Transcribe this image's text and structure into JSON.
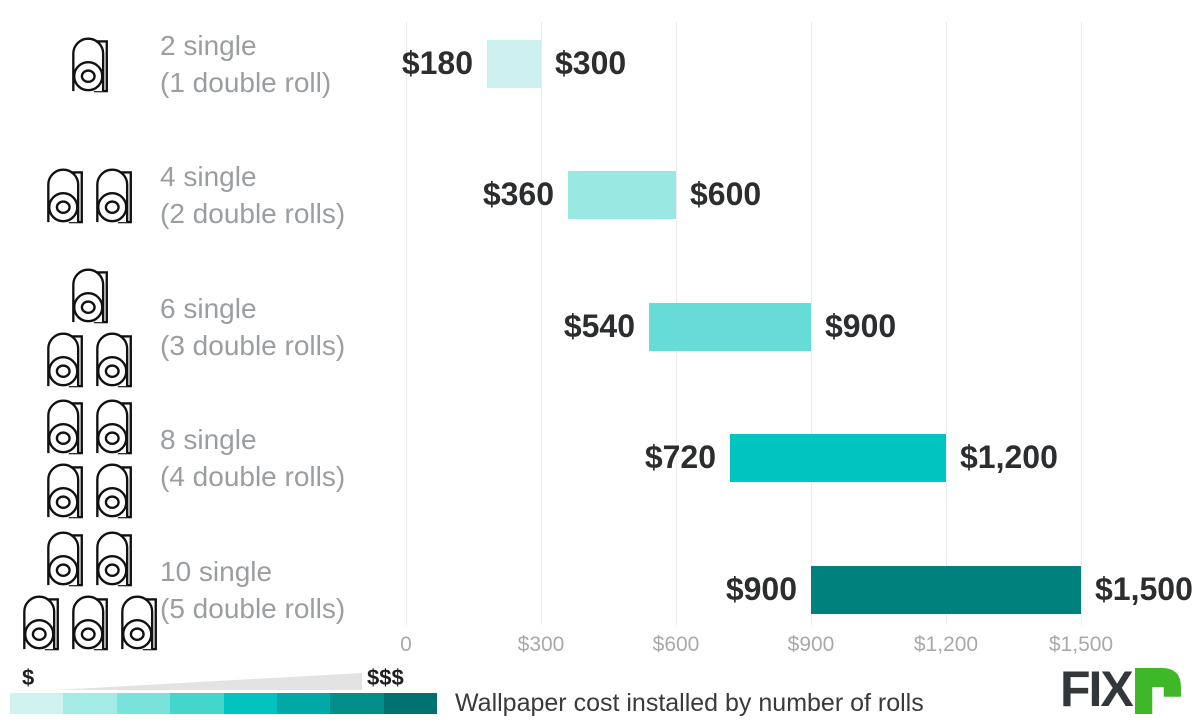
{
  "chart_data": {
    "type": "bar",
    "subtype": "horizontal-range-bars",
    "title": "Wallpaper cost installed by number of rolls",
    "x_axis": {
      "min": 0,
      "max": 1500,
      "grid": true,
      "ticks": [
        {
          "value": 0,
          "label": "0"
        },
        {
          "value": 300,
          "label": "$300"
        },
        {
          "value": 600,
          "label": "$600"
        },
        {
          "value": 900,
          "label": "$900"
        },
        {
          "value": 1200,
          "label": "$1,200"
        },
        {
          "value": 1500,
          "label": "$1,500"
        }
      ]
    },
    "rows": [
      {
        "category": "2 single (1 double roll)",
        "label_lines": [
          "2 single",
          "(1 double roll)"
        ],
        "min": 180,
        "max": 300,
        "min_label": "$180",
        "max_label": "$300",
        "color": "#cdf1f0",
        "icon_layout": [
          1
        ]
      },
      {
        "category": "4 single (2 double rolls)",
        "label_lines": [
          "4 single",
          "(2 double rolls)"
        ],
        "min": 360,
        "max": 600,
        "min_label": "$360",
        "max_label": "$600",
        "color": "#9ae8e2",
        "icon_layout": [
          2
        ]
      },
      {
        "category": "6 single (3 double rolls)",
        "label_lines": [
          "6 single",
          "(3 double rolls)"
        ],
        "min": 540,
        "max": 900,
        "min_label": "$540",
        "max_label": "$900",
        "color": "#67dcd7",
        "icon_layout": [
          1,
          2
        ]
      },
      {
        "category": "8 single (4 double rolls)",
        "label_lines": [
          "8 single",
          "(4 double rolls)"
        ],
        "min": 720,
        "max": 1200,
        "min_label": "$720",
        "max_label": "$1,200",
        "color": "#00c4c0",
        "icon_layout": [
          2,
          2
        ]
      },
      {
        "category": "10 single (5 double rolls)",
        "label_lines": [
          "10 single",
          "(5 double rolls)"
        ],
        "min": 900,
        "max": 1500,
        "min_label": "$900",
        "max_label": "$1,500",
        "color": "#00817d",
        "icon_layout": [
          2,
          3
        ]
      }
    ]
  },
  "legend": {
    "low_symbol": "$",
    "high_symbol": "$$$",
    "caption": "Wallpaper cost installed by number of rolls",
    "swatches": [
      "#cff2f0",
      "#a4ebe5",
      "#79e2da",
      "#44d6cd",
      "#00c4c0",
      "#00a9a5",
      "#008e8a",
      "#00716e"
    ]
  },
  "logo": {
    "text": "FIX",
    "text_color": "#33373a",
    "accent_color": "#3eb829"
  },
  "colors": {
    "value_label": "#2b2d2e",
    "category_label": "#9b9ea1",
    "tick_label": "#a9a9a9",
    "gridline": "#ececec",
    "wedge": "#e3e3e3"
  }
}
